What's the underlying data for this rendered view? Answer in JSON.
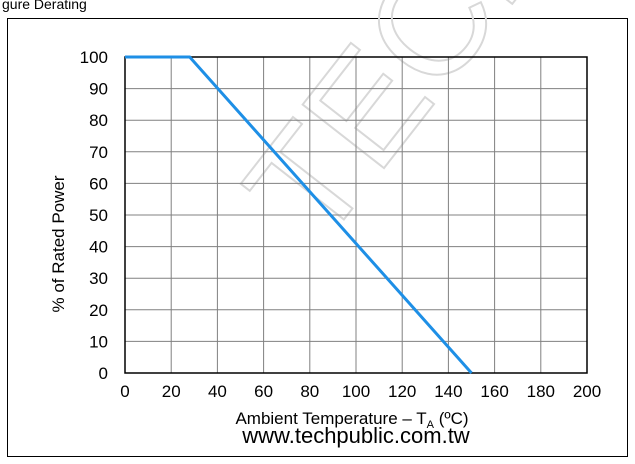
{
  "header": {
    "partial_title": "gure       Derating"
  },
  "chart_data": {
    "type": "line",
    "xlabel": "Ambient Temperature – T",
    "xlabel_subscript": "A",
    "xlabel_unit": " (ºC)",
    "ylabel": "% of Rated Power",
    "xlim": [
      0,
      200
    ],
    "ylim": [
      0,
      100
    ],
    "x_ticks": [
      0,
      20,
      40,
      60,
      80,
      100,
      120,
      140,
      160,
      180,
      200
    ],
    "y_ticks": [
      0,
      10,
      20,
      30,
      40,
      50,
      60,
      70,
      80,
      90,
      100
    ],
    "grid": true,
    "series": [
      {
        "x": [
          0,
          28,
          150
        ],
        "y": [
          100,
          100,
          0
        ],
        "color": "#1e8fe6"
      }
    ]
  },
  "watermark": {
    "text": "www.techpublic.com.tw",
    "diagonal_text": "TECH"
  },
  "colors": {
    "line": "#1e8fe6",
    "grid": "#808080",
    "axis": "#000000"
  }
}
